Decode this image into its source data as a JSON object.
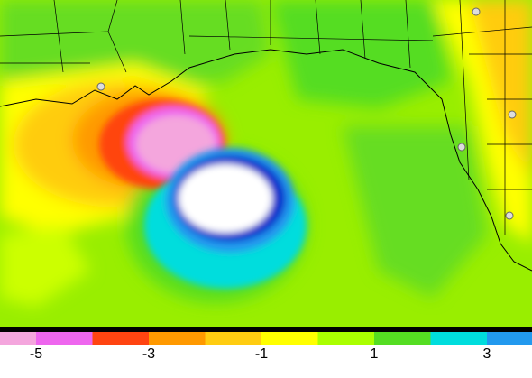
{
  "colorbar": {
    "bins": [
      -6,
      -5,
      -4,
      -3,
      -2,
      -1,
      0,
      1,
      2,
      3,
      4
    ],
    "colors": [
      "#f4a6dd",
      "#ee66ee",
      "#ff4411",
      "#ff9900",
      "#ffcc11",
      "#ffff00",
      "#aaff00",
      "#55dd22",
      "#00dddd",
      "#2299ee"
    ],
    "ticks": [
      -5,
      -3,
      -1,
      1,
      3
    ]
  }
}
